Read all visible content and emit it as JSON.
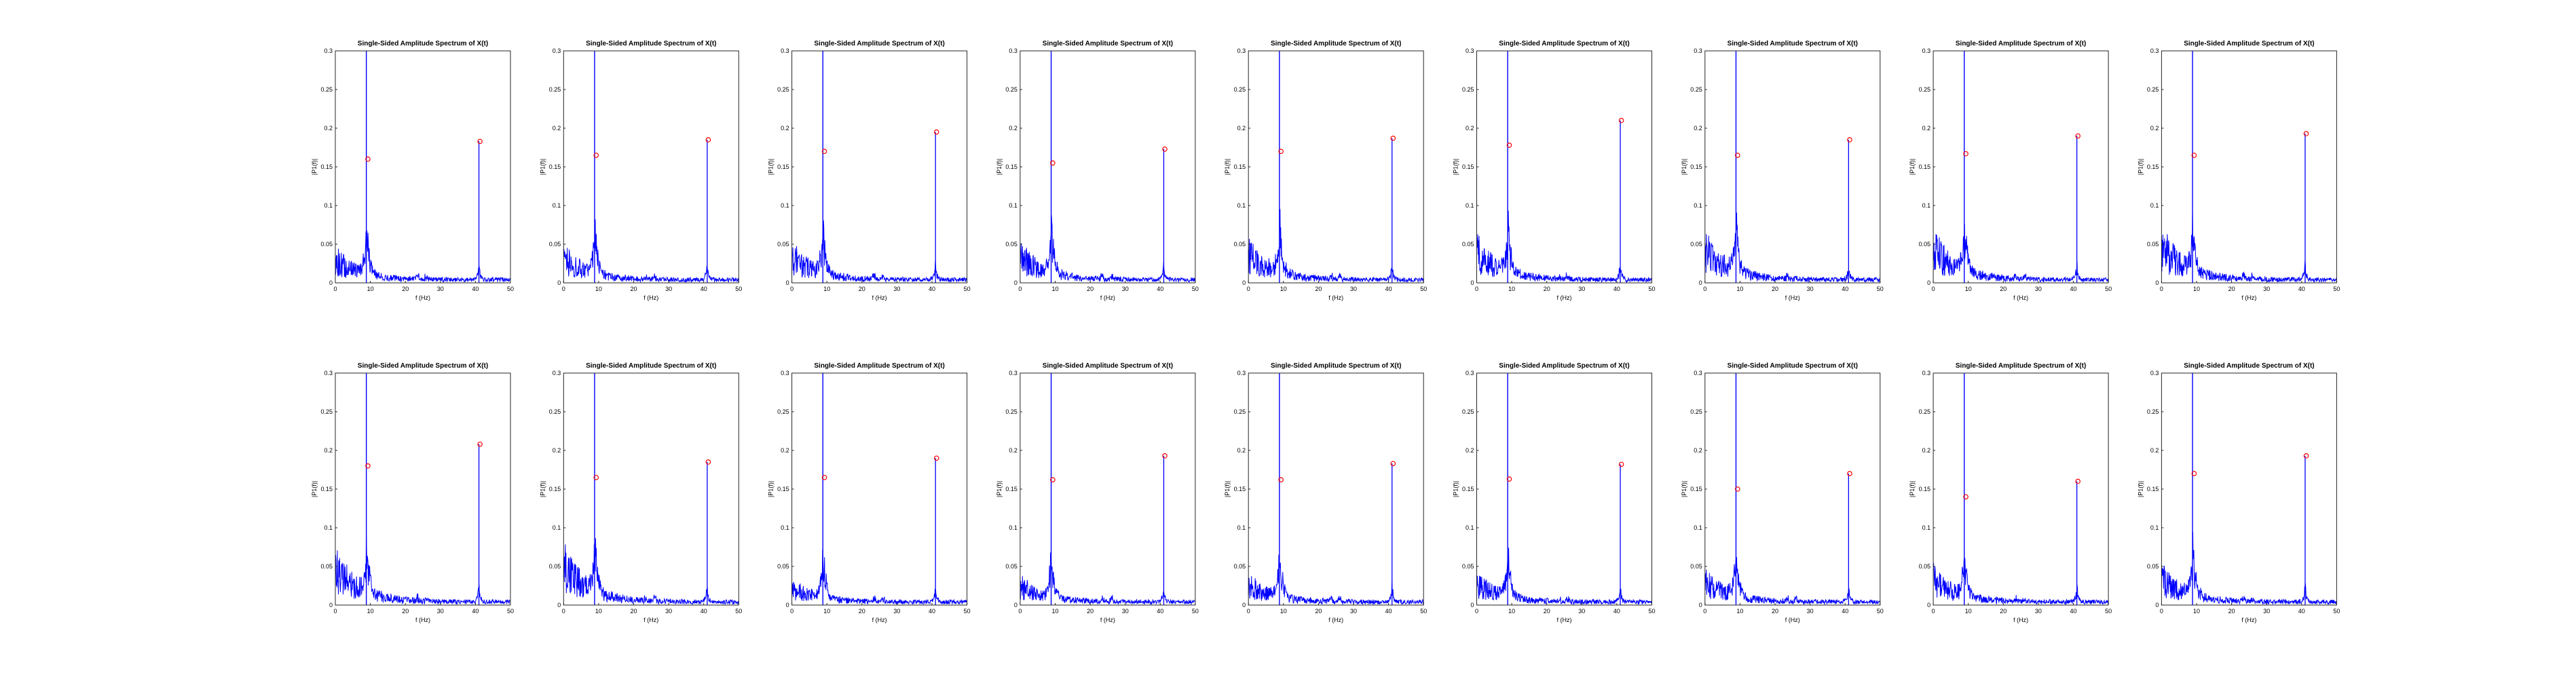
{
  "figure": {
    "colors": {
      "spectrum": "#0000ff",
      "peak_marker": "#ff0000",
      "axes": "#262626",
      "text": "#000000"
    }
  },
  "chart_data": {
    "type": "line",
    "grid": false,
    "layout": {
      "rows": 2,
      "cols": 9
    },
    "subplot_template": {
      "title": "Single-Sided Amplitude Spectrum of X(t)",
      "xlabel": "f (Hz)",
      "ylabel": "|P1(f)|",
      "xlim": [
        0,
        50
      ],
      "ylim": [
        0,
        0.3
      ],
      "xticks": [
        "0",
        "10",
        "20",
        "30",
        "40",
        "50"
      ],
      "yticks": [
        "0",
        "0.05",
        "0.1",
        "0.15",
        "0.2",
        "0.25",
        "0.3"
      ],
      "peak_freqs": [
        9,
        41
      ]
    },
    "subplots": [
      {
        "row": 1,
        "col": 1,
        "peaks": [
          {
            "f": 9,
            "amp": 0.16
          },
          {
            "f": 41,
            "amp": 0.183
          }
        ]
      },
      {
        "row": 1,
        "col": 2,
        "peaks": [
          {
            "f": 9,
            "amp": 0.165
          },
          {
            "f": 41,
            "amp": 0.185
          }
        ]
      },
      {
        "row": 1,
        "col": 3,
        "peaks": [
          {
            "f": 9,
            "amp": 0.17
          },
          {
            "f": 41,
            "amp": 0.195
          }
        ]
      },
      {
        "row": 1,
        "col": 4,
        "peaks": [
          {
            "f": 9,
            "amp": 0.155
          },
          {
            "f": 41,
            "amp": 0.173
          }
        ]
      },
      {
        "row": 1,
        "col": 5,
        "peaks": [
          {
            "f": 9,
            "amp": 0.17
          },
          {
            "f": 41,
            "amp": 0.187
          }
        ]
      },
      {
        "row": 1,
        "col": 6,
        "peaks": [
          {
            "f": 9,
            "amp": 0.178
          },
          {
            "f": 41,
            "amp": 0.21
          }
        ]
      },
      {
        "row": 1,
        "col": 7,
        "peaks": [
          {
            "f": 9,
            "amp": 0.165
          },
          {
            "f": 41,
            "amp": 0.185
          }
        ]
      },
      {
        "row": 1,
        "col": 8,
        "peaks": [
          {
            "f": 9,
            "amp": 0.167
          },
          {
            "f": 41,
            "amp": 0.19
          }
        ]
      },
      {
        "row": 1,
        "col": 9,
        "peaks": [
          {
            "f": 9,
            "amp": 0.165
          },
          {
            "f": 41,
            "amp": 0.193
          }
        ]
      },
      {
        "row": 2,
        "col": 1,
        "peaks": [
          {
            "f": 9,
            "amp": 0.18
          },
          {
            "f": 41,
            "amp": 0.208
          }
        ]
      },
      {
        "row": 2,
        "col": 2,
        "peaks": [
          {
            "f": 9,
            "amp": 0.165
          },
          {
            "f": 41,
            "amp": 0.185
          }
        ]
      },
      {
        "row": 2,
        "col": 3,
        "peaks": [
          {
            "f": 9,
            "amp": 0.165
          },
          {
            "f": 41,
            "amp": 0.19
          }
        ]
      },
      {
        "row": 2,
        "col": 4,
        "peaks": [
          {
            "f": 9,
            "amp": 0.162
          },
          {
            "f": 41,
            "amp": 0.193
          }
        ]
      },
      {
        "row": 2,
        "col": 5,
        "peaks": [
          {
            "f": 9,
            "amp": 0.162
          },
          {
            "f": 41,
            "amp": 0.183
          }
        ]
      },
      {
        "row": 2,
        "col": 6,
        "peaks": [
          {
            "f": 9,
            "amp": 0.163
          },
          {
            "f": 41,
            "amp": 0.182
          }
        ]
      },
      {
        "row": 2,
        "col": 7,
        "peaks": [
          {
            "f": 9,
            "amp": 0.15
          },
          {
            "f": 41,
            "amp": 0.17
          }
        ]
      },
      {
        "row": 2,
        "col": 8,
        "peaks": [
          {
            "f": 9,
            "amp": 0.14
          },
          {
            "f": 41,
            "amp": 0.16
          }
        ]
      },
      {
        "row": 2,
        "col": 9,
        "peaks": [
          {
            "f": 9,
            "amp": 0.17
          },
          {
            "f": 41,
            "amp": 0.193
          }
        ]
      }
    ]
  }
}
